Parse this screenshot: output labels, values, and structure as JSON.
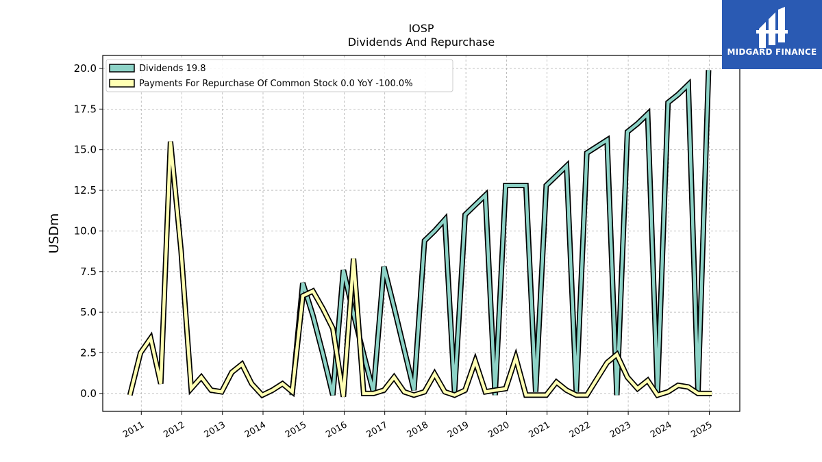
{
  "logo": {
    "text": "MIDGARD FINANCE",
    "background": "#2a5ab3"
  },
  "chart_data": {
    "type": "line",
    "title": "IOSP",
    "subtitle": "Dividends And Repurchase",
    "ylabel": "USDm",
    "xlabel": "",
    "ylim": [
      -1.1,
      20.8
    ],
    "xlim": [
      2010.05,
      2025.75
    ],
    "grid": true,
    "legend_position": "top-left",
    "y_ticks": [
      "0.0",
      "2.5",
      "5.0",
      "7.5",
      "10.0",
      "12.5",
      "15.0",
      "17.5",
      "20.0"
    ],
    "x_ticks": [
      "2011",
      "2012",
      "2013",
      "2014",
      "2015",
      "2016",
      "2017",
      "2018",
      "2019",
      "2020",
      "2021",
      "2022",
      "2023",
      "2024",
      "2025"
    ],
    "series": [
      {
        "name": "Dividends",
        "legend_label": "Dividends  19.8",
        "color": "#8dd3c7",
        "points": [
          [
            2014.72,
            -0.1
          ],
          [
            2014.72,
            0.0
          ],
          [
            2014.98,
            6.8
          ],
          [
            2015.23,
            4.8
          ],
          [
            2015.48,
            2.4
          ],
          [
            2015.72,
            -0.1
          ],
          [
            2015.98,
            7.6
          ],
          [
            2016.23,
            4.9
          ],
          [
            2016.48,
            2.4
          ],
          [
            2016.72,
            0.1
          ],
          [
            2016.98,
            7.8
          ],
          [
            2017.23,
            5.3
          ],
          [
            2017.48,
            2.7
          ],
          [
            2017.72,
            0.2
          ],
          [
            2017.98,
            9.4
          ],
          [
            2018.23,
            10.0
          ],
          [
            2018.48,
            10.7
          ],
          [
            2018.72,
            0.1
          ],
          [
            2018.98,
            11.0
          ],
          [
            2019.23,
            11.6
          ],
          [
            2019.48,
            12.2
          ],
          [
            2019.72,
            -0.1
          ],
          [
            2019.98,
            12.8
          ],
          [
            2020.23,
            12.8
          ],
          [
            2020.48,
            12.8
          ],
          [
            2020.72,
            0.1
          ],
          [
            2020.98,
            12.8
          ],
          [
            2021.23,
            13.4
          ],
          [
            2021.48,
            14.0
          ],
          [
            2021.72,
            0.1
          ],
          [
            2021.98,
            14.8
          ],
          [
            2022.23,
            15.2
          ],
          [
            2022.48,
            15.6
          ],
          [
            2022.72,
            -0.1
          ],
          [
            2022.98,
            16.1
          ],
          [
            2023.23,
            16.6
          ],
          [
            2023.48,
            17.2
          ],
          [
            2023.72,
            0.1
          ],
          [
            2023.98,
            17.9
          ],
          [
            2024.23,
            18.4
          ],
          [
            2024.48,
            19.0
          ],
          [
            2024.72,
            0.1
          ],
          [
            2024.98,
            19.9
          ],
          [
            2024.98,
            19.9
          ]
        ]
      },
      {
        "name": "Payments For Repurchase Of Common Stock",
        "legend_label": "Payments For Repurchase Of Common Stock  0.0 YoY -100.0%",
        "color": "#ffffb3",
        "points": [
          [
            2010.72,
            -0.1
          ],
          [
            2010.98,
            2.5
          ],
          [
            2011.23,
            3.4
          ],
          [
            2011.48,
            0.6
          ],
          [
            2011.72,
            15.5
          ],
          [
            2011.98,
            8.8
          ],
          [
            2012.23,
            0.3
          ],
          [
            2012.48,
            1.0
          ],
          [
            2012.72,
            0.2
          ],
          [
            2012.98,
            0.1
          ],
          [
            2013.23,
            1.3
          ],
          [
            2013.48,
            1.8
          ],
          [
            2013.72,
            0.6
          ],
          [
            2013.98,
            -0.1
          ],
          [
            2014.23,
            0.2
          ],
          [
            2014.48,
            0.6
          ],
          [
            2014.72,
            0.1
          ],
          [
            2014.98,
            6.0
          ],
          [
            2015.23,
            6.3
          ],
          [
            2015.48,
            5.2
          ],
          [
            2015.72,
            4.0
          ],
          [
            2015.98,
            -0.2
          ],
          [
            2016.23,
            8.3
          ],
          [
            2016.48,
            0.0
          ],
          [
            2016.72,
            0.0
          ],
          [
            2016.98,
            0.2
          ],
          [
            2017.23,
            1.0
          ],
          [
            2017.48,
            0.1
          ],
          [
            2017.72,
            -0.1
          ],
          [
            2017.98,
            0.1
          ],
          [
            2018.23,
            1.2
          ],
          [
            2018.48,
            0.1
          ],
          [
            2018.72,
            -0.1
          ],
          [
            2018.98,
            0.2
          ],
          [
            2019.23,
            2.0
          ],
          [
            2019.48,
            0.1
          ],
          [
            2019.72,
            0.2
          ],
          [
            2019.98,
            0.3
          ],
          [
            2020.23,
            2.2
          ],
          [
            2020.48,
            -0.1
          ],
          [
            2020.72,
            -0.1
          ],
          [
            2020.98,
            -0.1
          ],
          [
            2021.23,
            0.7
          ],
          [
            2021.48,
            0.2
          ],
          [
            2021.72,
            -0.1
          ],
          [
            2021.98,
            -0.1
          ],
          [
            2022.23,
            0.9
          ],
          [
            2022.48,
            1.9
          ],
          [
            2022.72,
            2.4
          ],
          [
            2022.98,
            1.0
          ],
          [
            2023.23,
            0.3
          ],
          [
            2023.48,
            0.8
          ],
          [
            2023.72,
            -0.1
          ],
          [
            2023.98,
            0.1
          ],
          [
            2024.23,
            0.5
          ],
          [
            2024.48,
            0.4
          ],
          [
            2024.72,
            0.0
          ],
          [
            2024.98,
            0.0
          ],
          [
            2025.06,
            0.0
          ]
        ]
      }
    ]
  }
}
